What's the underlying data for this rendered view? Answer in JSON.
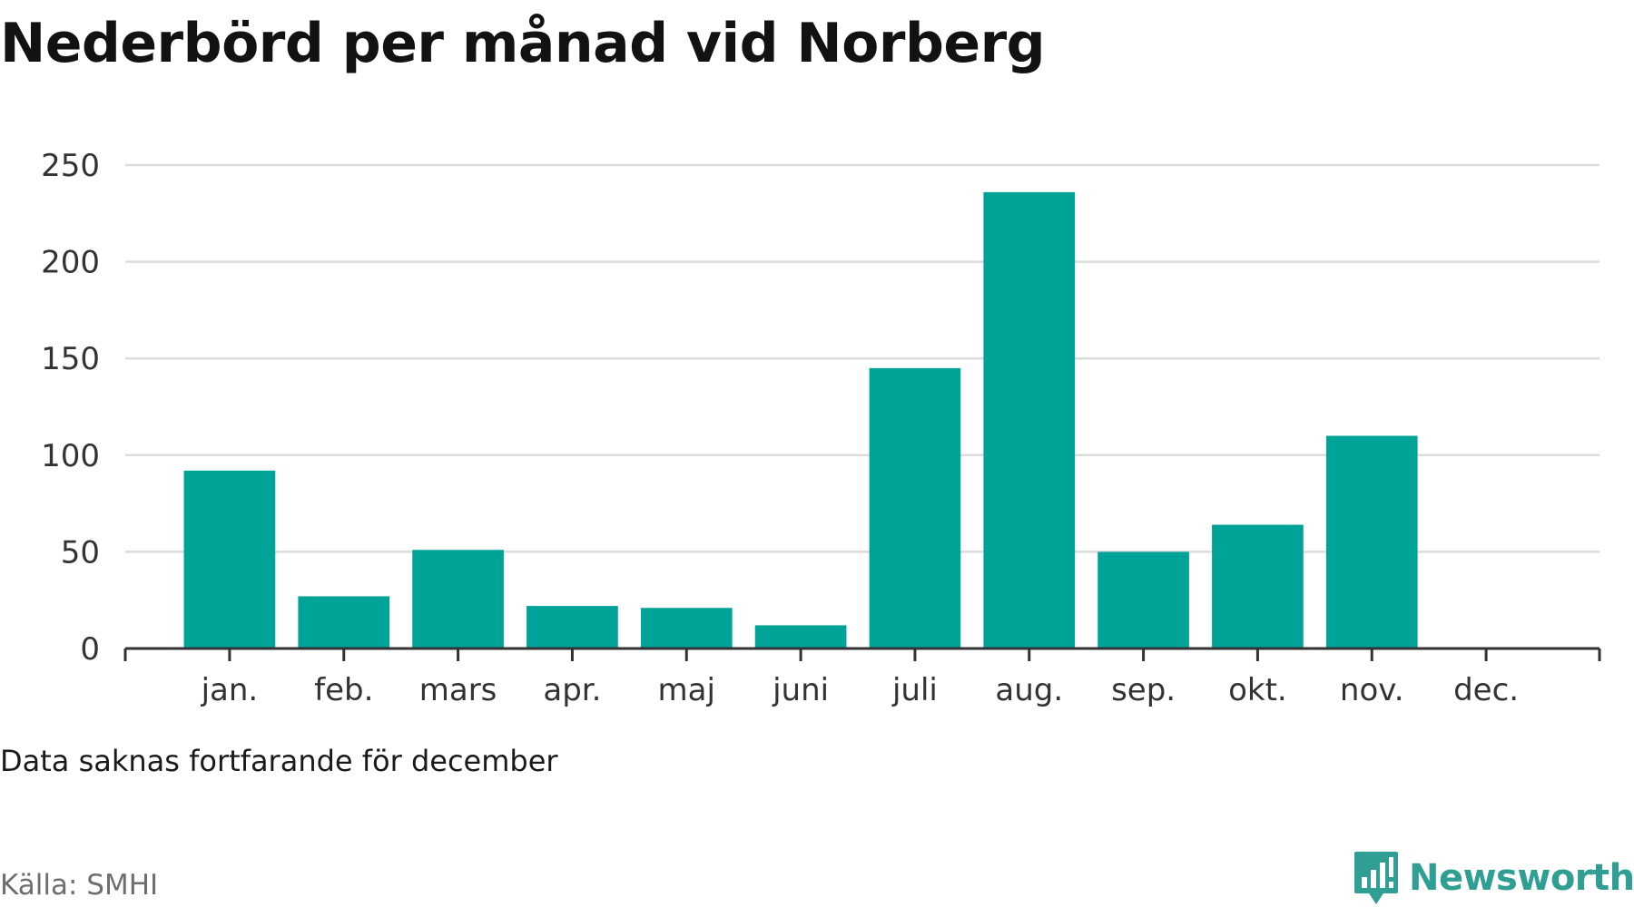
{
  "title": "Nederbörd per månad vid Norberg",
  "note": "Data saknas fortfarande för december",
  "source": "Källa: SMHI",
  "brand": {
    "name": "Newsworthy",
    "icon": "bar-chart-pin-icon",
    "color": "#2f9e93"
  },
  "chart_data": {
    "type": "bar",
    "categories": [
      "jan.",
      "feb.",
      "mars",
      "apr.",
      "maj",
      "juni",
      "juli",
      "aug.",
      "sep.",
      "okt.",
      "nov.",
      "dec."
    ],
    "values": [
      92,
      27,
      51,
      22,
      21,
      12,
      145,
      236,
      50,
      64,
      110,
      null
    ],
    "ylim": [
      0,
      250
    ],
    "yticks": [
      0,
      50,
      100,
      150,
      200,
      250
    ],
    "grid": true,
    "bar_color": "#00a397",
    "xlabel": "",
    "ylabel": ""
  }
}
